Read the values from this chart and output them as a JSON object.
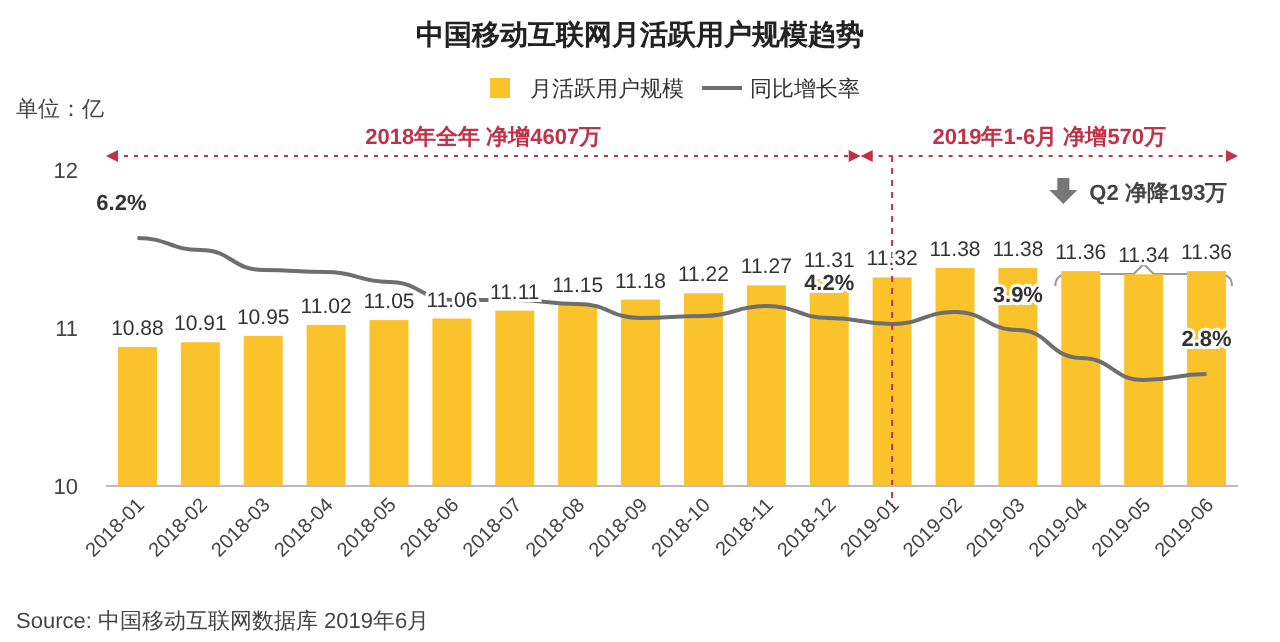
{
  "chart_data": {
    "type": "bar",
    "title": "中国移动互联网月活跃用户规模趋势",
    "ylabel": "单位：亿",
    "categories": [
      "2018-01",
      "2018-02",
      "2018-03",
      "2018-04",
      "2018-05",
      "2018-06",
      "2018-07",
      "2018-08",
      "2018-09",
      "2018-10",
      "2018-11",
      "2018-12",
      "2019-01",
      "2019-02",
      "2019-03",
      "2019-04",
      "2019-05",
      "2019-06"
    ],
    "series": [
      {
        "name": "月活跃用户规模",
        "color": "#fbc32b",
        "values": [
          10.88,
          10.91,
          10.95,
          11.02,
          11.05,
          11.06,
          11.11,
          11.15,
          11.18,
          11.22,
          11.27,
          11.31,
          11.32,
          11.38,
          11.38,
          11.36,
          11.34,
          11.36
        ]
      },
      {
        "name": "同比增长率",
        "type": "line",
        "axis": "y2",
        "color": "#6e6e6e",
        "values": [
          6.2,
          5.9,
          5.4,
          5.35,
          5.1,
          4.65,
          4.65,
          4.55,
          4.2,
          4.25,
          4.5,
          4.2,
          4.05,
          4.35,
          3.9,
          3.2,
          2.65,
          2.8
        ],
        "value_labels": [
          "6.2%",
          null,
          null,
          null,
          null,
          null,
          null,
          null,
          null,
          null,
          null,
          "4.2%",
          null,
          null,
          "3.9%",
          null,
          null,
          "2.8%"
        ]
      }
    ],
    "data_labels": true,
    "ylim": [
      10,
      12
    ],
    "yticks": [
      10,
      11,
      12
    ],
    "tick_labels": "xy",
    "legend": "top",
    "grid": false,
    "ref_lines": [
      {
        "axis": "x",
        "value": "2019-01",
        "color": "#c0314a",
        "line_style": "dashed"
      }
    ],
    "annotations": [
      "2018年全年  净增4607万",
      "2019年1-6月  净增570万",
      "Q2 净降193万",
      "Source:  中国移动互联网数据库 2019年6月"
    ]
  }
}
